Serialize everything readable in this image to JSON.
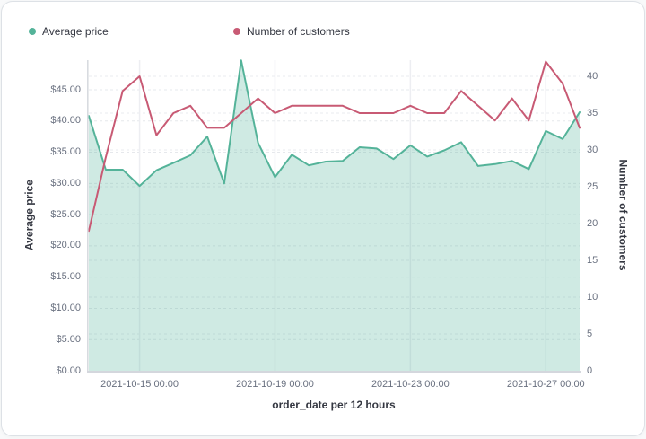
{
  "legend": {
    "items": [
      {
        "label": "Average price",
        "color": "#54B399"
      },
      {
        "label": "Number of customers",
        "color": "#C85A74"
      }
    ]
  },
  "chart_data": {
    "type": "area",
    "title": "",
    "x_title": "order_date per 12 hours",
    "x_interval": "12 hours",
    "x": [
      "2021-10-13 12:00",
      "2021-10-14 00:00",
      "2021-10-14 12:00",
      "2021-10-15 00:00",
      "2021-10-15 12:00",
      "2021-10-16 00:00",
      "2021-10-16 12:00",
      "2021-10-17 00:00",
      "2021-10-17 12:00",
      "2021-10-18 00:00",
      "2021-10-18 12:00",
      "2021-10-19 00:00",
      "2021-10-19 12:00",
      "2021-10-20 00:00",
      "2021-10-20 12:00",
      "2021-10-21 00:00",
      "2021-10-21 12:00",
      "2021-10-22 00:00",
      "2021-10-22 12:00",
      "2021-10-23 00:00",
      "2021-10-23 12:00",
      "2021-10-24 00:00",
      "2021-10-24 12:00",
      "2021-10-25 00:00",
      "2021-10-25 12:00",
      "2021-10-26 00:00",
      "2021-10-26 12:00",
      "2021-10-27 00:00",
      "2021-10-27 12:00",
      "2021-10-28 00:00"
    ],
    "series": [
      {
        "name": "Average price",
        "type": "area",
        "axis": "left",
        "color": "#54B399",
        "fill_opacity": 0.28,
        "values": [
          40.8,
          32.2,
          32.2,
          29.6,
          32.1,
          33.3,
          34.5,
          37.5,
          30.0,
          49.7,
          36.5,
          31.0,
          34.6,
          32.9,
          33.5,
          33.6,
          35.8,
          35.6,
          33.9,
          36.1,
          34.3,
          35.3,
          36.6,
          32.8,
          33.1,
          33.6,
          32.3,
          38.4,
          37.1,
          41.4
        ]
      },
      {
        "name": "Number of customers",
        "type": "line",
        "axis": "right",
        "color": "#C85A74",
        "values": [
          19,
          29,
          38,
          40,
          32,
          35,
          36,
          33,
          33,
          35,
          37,
          35,
          36,
          36,
          36,
          36,
          35,
          35,
          35,
          36,
          35,
          35,
          38,
          36,
          34,
          37,
          34,
          42,
          39,
          33
        ]
      }
    ],
    "left_axis": {
      "title": "Average price",
      "tick_values": [
        0,
        5,
        10,
        15,
        20,
        25,
        30,
        35,
        40,
        45
      ],
      "tick_labels": [
        "$0.00",
        "$5.00",
        "$10.00",
        "$15.00",
        "$20.00",
        "$25.00",
        "$30.00",
        "$35.00",
        "$40.00",
        "$45.00"
      ],
      "range": [
        0,
        49.7
      ],
      "grid": "dashed"
    },
    "right_axis": {
      "title": "Number of customers",
      "tick_values": [
        0,
        5,
        10,
        15,
        20,
        25,
        30,
        35,
        40
      ],
      "tick_labels": [
        "0",
        "5",
        "10",
        "15",
        "20",
        "25",
        "30",
        "35",
        "40"
      ],
      "range": [
        0,
        42.2
      ],
      "grid": "dashed"
    },
    "x_tick_labels": [
      "2021-10-15 00:00",
      "2021-10-19 00:00",
      "2021-10-23 00:00",
      "2021-10-27 00:00"
    ],
    "x_tick_indices": [
      3,
      11,
      19,
      27
    ],
    "legend_position": "top"
  }
}
